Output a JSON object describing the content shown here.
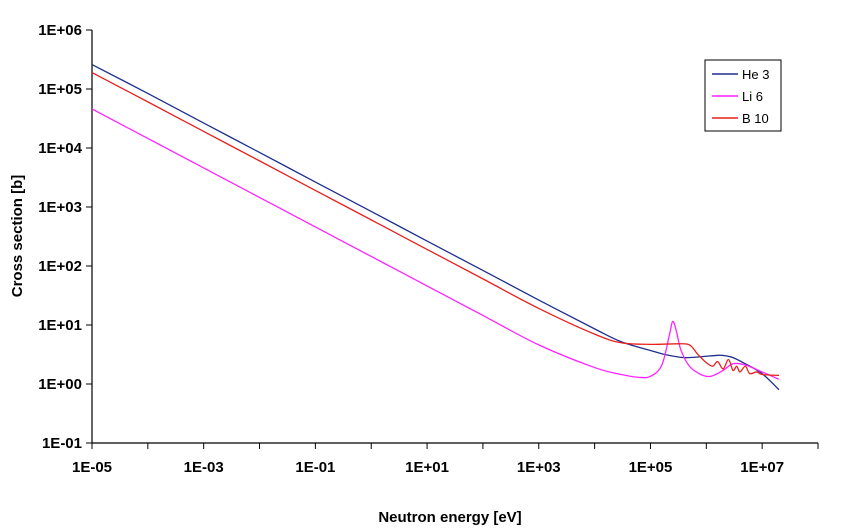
{
  "chart_data": {
    "type": "line",
    "title": "",
    "xlabel": "Neutron energy [eV]",
    "ylabel": "Cross section [b]",
    "x_scale": "log",
    "y_scale": "log",
    "xlim": [
      1e-05,
      100000000.0
    ],
    "ylim": [
      0.1,
      1000000
    ],
    "x_ticks": [
      {
        "value": 1e-05,
        "label": "1E-05"
      },
      {
        "value": 0.001,
        "label": "1E-03"
      },
      {
        "value": 0.1,
        "label": "1E-01"
      },
      {
        "value": 10.0,
        "label": "1E+01"
      },
      {
        "value": 1000.0,
        "label": "1E+03"
      },
      {
        "value": 100000.0,
        "label": "1E+05"
      },
      {
        "value": 10000000.0,
        "label": "1E+07"
      }
    ],
    "y_ticks": [
      {
        "value": 1000000.0,
        "label": "1E+06"
      },
      {
        "value": 100000.0,
        "label": "1E+05"
      },
      {
        "value": 10000.0,
        "label": "1E+04"
      },
      {
        "value": 1000.0,
        "label": "1E+03"
      },
      {
        "value": 100.0,
        "label": "1E+02"
      },
      {
        "value": 10.0,
        "label": "1E+01"
      },
      {
        "value": 1.0,
        "label": "1E+00"
      },
      {
        "value": 0.1,
        "label": "1E-01"
      }
    ],
    "grid": false,
    "legend_position": "top-right",
    "series": [
      {
        "name": "He 3",
        "color": "#1f2f8f",
        "points": [
          [
            1e-05,
            260000
          ],
          [
            0.0001,
            84000
          ],
          [
            0.001,
            26500
          ],
          [
            0.01,
            8400
          ],
          [
            0.1,
            2650
          ],
          [
            1.0,
            840
          ],
          [
            10.0,
            265
          ],
          [
            100.0,
            84
          ],
          [
            1000.0,
            26.5
          ],
          [
            10000.0,
            8.6
          ],
          [
            30000.0,
            5.2
          ],
          [
            100000.0,
            3.7
          ],
          [
            200000.0,
            3.1
          ],
          [
            400000.0,
            2.8
          ],
          [
            800000.0,
            2.9
          ],
          [
            1500000.0,
            3.05
          ],
          [
            2000000.0,
            3.05
          ],
          [
            3000000.0,
            2.8
          ],
          [
            5000000.0,
            2.2
          ],
          [
            10000000.0,
            1.5
          ],
          [
            20000000.0,
            0.8
          ]
        ]
      },
      {
        "name": "Li 6",
        "color": "#ff22ff",
        "points": [
          [
            1e-05,
            46000
          ],
          [
            0.0001,
            14500
          ],
          [
            0.001,
            4600
          ],
          [
            0.01,
            1450
          ],
          [
            0.1,
            460
          ],
          [
            1.0,
            145
          ],
          [
            10.0,
            46
          ],
          [
            100.0,
            14.5
          ],
          [
            1000.0,
            4.6
          ],
          [
            10000.0,
            1.9
          ],
          [
            30000.0,
            1.45
          ],
          [
            60000.0,
            1.3
          ],
          [
            100000.0,
            1.35
          ],
          [
            160000.0,
            2.1
          ],
          [
            220000.0,
            7
          ],
          [
            250000.0,
            11.5
          ],
          [
            290000.0,
            8
          ],
          [
            350000.0,
            3.8
          ],
          [
            500000.0,
            2.0
          ],
          [
            800000.0,
            1.45
          ],
          [
            1200000.0,
            1.35
          ],
          [
            2000000.0,
            1.7
          ],
          [
            3000000.0,
            2.2
          ],
          [
            5000000.0,
            2.1
          ],
          [
            10000000.0,
            1.6
          ],
          [
            20000000.0,
            1.2
          ]
        ]
      },
      {
        "name": "B 10",
        "color": "#e8201e",
        "points": [
          [
            1e-05,
            190000
          ],
          [
            0.0001,
            60500
          ],
          [
            0.001,
            19100
          ],
          [
            0.01,
            6050
          ],
          [
            0.1,
            1910
          ],
          [
            1.0,
            605
          ],
          [
            10.0,
            191
          ],
          [
            100.0,
            60.5
          ],
          [
            1000.0,
            19.1
          ],
          [
            10000.0,
            7.0
          ],
          [
            30000.0,
            5.0
          ],
          [
            100000.0,
            4.7
          ],
          [
            300000.0,
            4.8
          ],
          [
            500000.0,
            4.6
          ],
          [
            700000.0,
            3.2
          ],
          [
            1000000.0,
            2.3
          ],
          [
            1300000.0,
            2.0
          ],
          [
            1600000.0,
            2.4
          ],
          [
            2000000.0,
            1.8
          ],
          [
            2500000.0,
            2.6
          ],
          [
            3000000.0,
            1.7
          ],
          [
            3500000.0,
            2.0
          ],
          [
            4000000.0,
            1.6
          ],
          [
            5000000.0,
            2.0
          ],
          [
            6000000.0,
            1.5
          ],
          [
            8000000.0,
            1.6
          ],
          [
            10000000.0,
            1.45
          ],
          [
            20000000.0,
            1.4
          ]
        ]
      }
    ]
  }
}
